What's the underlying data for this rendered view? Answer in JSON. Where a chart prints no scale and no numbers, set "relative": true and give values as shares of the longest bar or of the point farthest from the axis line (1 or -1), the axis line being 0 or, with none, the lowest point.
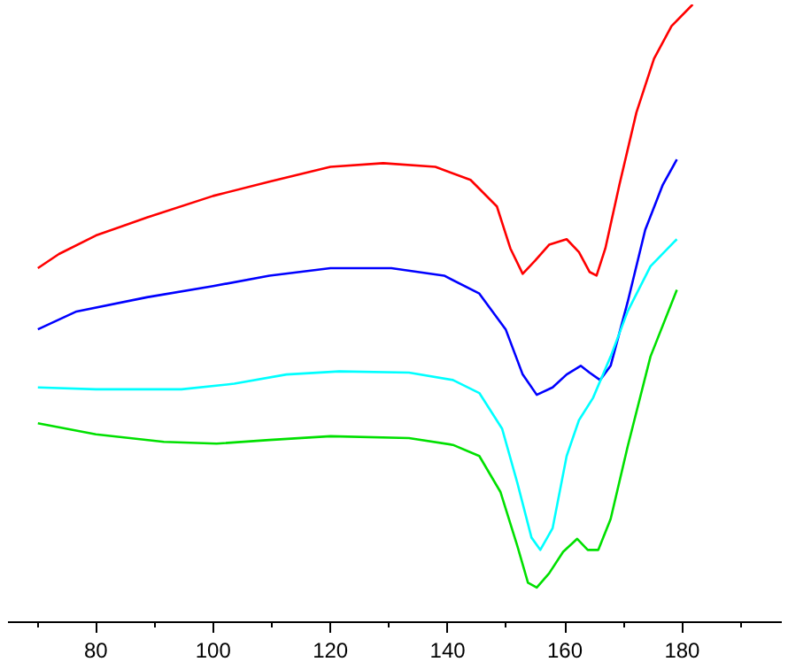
{
  "chart_data": {
    "type": "line",
    "relative": true,
    "xlim": [
      65,
      197
    ],
    "xticks": [
      80,
      100,
      120,
      140,
      160,
      180
    ],
    "grid": false,
    "tick_labels": "x",
    "series": [
      {
        "color": "#ff0000",
        "x": [
          70.1,
          73.7,
          80,
          88.7,
          100,
          109.6,
          120,
          129,
          137.9,
          143.9,
          148.4,
          150.7,
          152.8,
          154.9,
          157.3,
          160.3,
          162.4,
          164.2,
          165.4,
          166.9,
          169.3,
          172.2,
          175.2,
          178.2,
          181.8
        ],
        "values": [
          0.573,
          0.596,
          0.626,
          0.655,
          0.69,
          0.713,
          0.737,
          0.743,
          0.737,
          0.716,
          0.673,
          0.605,
          0.564,
          0.585,
          0.611,
          0.62,
          0.599,
          0.567,
          0.561,
          0.605,
          0.708,
          0.825,
          0.912,
          0.965,
          1
        ]
      },
      {
        "color": "#0000ff",
        "x": [
          70.1,
          76.7,
          88.7,
          100,
          109.6,
          120,
          130.4,
          139.4,
          145.4,
          149.9,
          152.8,
          155.2,
          157.9,
          160.3,
          162.7,
          164.2,
          166,
          167.8,
          170.7,
          173.7,
          176.7,
          179.1
        ],
        "values": [
          0.474,
          0.503,
          0.526,
          0.544,
          0.561,
          0.573,
          0.573,
          0.561,
          0.532,
          0.474,
          0.401,
          0.368,
          0.38,
          0.401,
          0.415,
          0.404,
          0.392,
          0.415,
          0.518,
          0.635,
          0.708,
          0.749
        ]
      },
      {
        "color": "#00ffff",
        "x": [
          70.1,
          80,
          94.6,
          103.6,
          112.5,
          121.5,
          133.4,
          140.9,
          145.4,
          149.3,
          151.9,
          154.3,
          155.8,
          157.9,
          160.3,
          162.4,
          164.8,
          167.8,
          170.7,
          174.6,
          179.1
        ],
        "values": [
          0.38,
          0.377,
          0.377,
          0.386,
          0.401,
          0.406,
          0.404,
          0.392,
          0.371,
          0.313,
          0.225,
          0.137,
          0.117,
          0.152,
          0.269,
          0.327,
          0.363,
          0.43,
          0.503,
          0.576,
          0.62
        ]
      },
      {
        "color": "#00e000",
        "x": [
          70.1,
          80,
          91.6,
          100.6,
          109.6,
          120,
          133.4,
          140.9,
          145.4,
          149,
          151.9,
          153.7,
          155.2,
          157.3,
          159.7,
          162.1,
          163.9,
          165.7,
          167.8,
          170.7,
          174.6,
          179.1
        ],
        "values": [
          0.322,
          0.304,
          0.292,
          0.289,
          0.295,
          0.301,
          0.298,
          0.287,
          0.269,
          0.211,
          0.123,
          0.064,
          0.056,
          0.079,
          0.114,
          0.135,
          0.117,
          0.117,
          0.167,
          0.284,
          0.43,
          0.538
        ]
      }
    ]
  }
}
